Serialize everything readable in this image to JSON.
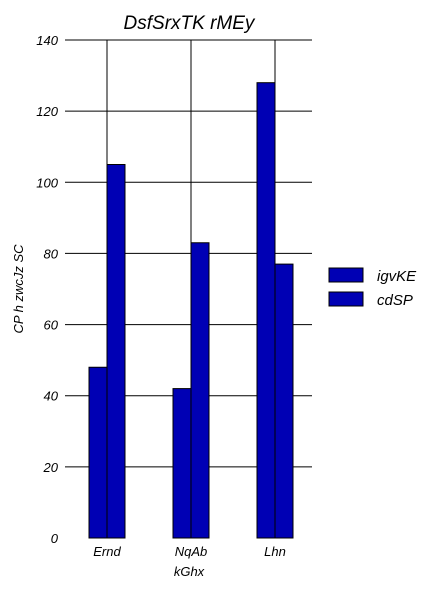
{
  "chart_data": {
    "type": "bar",
    "title": "DsfSrxTK rMEy",
    "xlabel": "kGhx",
    "ylabel": "CP h zwcJz SC",
    "categories": [
      "Ernd",
      "NqAb",
      "Lhn"
    ],
    "series": [
      {
        "name": "igvKE",
        "values": [
          48,
          42,
          128
        ]
      },
      {
        "name": "cdSP",
        "values": [
          105,
          83,
          77
        ]
      }
    ],
    "ylim": [
      0,
      140
    ],
    "yticks": [
      0,
      20,
      40,
      60,
      80,
      100,
      120,
      140
    ],
    "grid": "horizontal and vertical",
    "legend_position": "right",
    "colors": {
      "bar_fill": "#0000b4",
      "bar_edge": "#000000",
      "grid": "#000000"
    }
  }
}
